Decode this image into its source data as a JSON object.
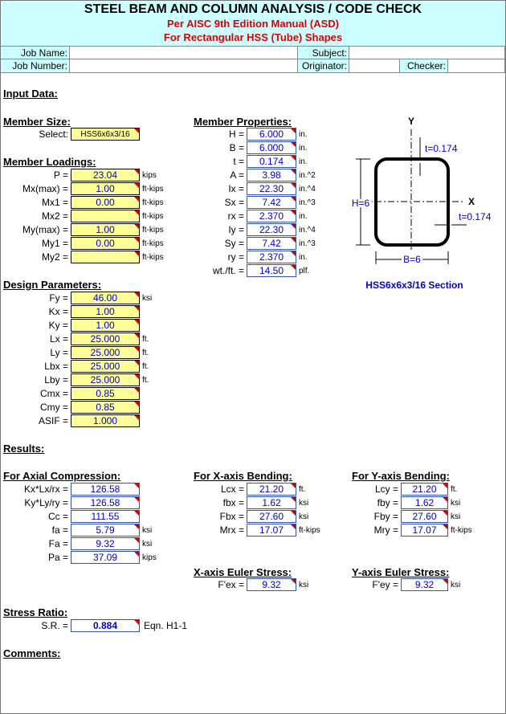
{
  "header": {
    "title": "STEEL BEAM AND COLUMN ANALYSIS / CODE CHECK",
    "subtitle": "Per AISC 9th Edition Manual (ASD)",
    "subtitle2": "For Rectangular HSS (Tube) Shapes"
  },
  "job": {
    "job_name": "Job Name:",
    "subject": "Subject:",
    "job_number": "Job Number:",
    "originator": "Originator:",
    "checker": "Checker:"
  },
  "input_heading": "Input Data:",
  "member_size": {
    "heading": "Member Size:",
    "label": "Select:",
    "value": "HSS6x6x3/16"
  },
  "member_loadings": {
    "heading": "Member Loadings:",
    "rows": [
      {
        "label": "P =",
        "value": "23.04",
        "unit": "kips"
      },
      {
        "label": "Mx(max) =",
        "value": "1.00",
        "unit": "ft-kips"
      },
      {
        "label": "Mx1 =",
        "value": "0.00",
        "unit": "ft-kips"
      },
      {
        "label": "Mx2 =",
        "unit": "ft-kips"
      },
      {
        "label": "My(max) =",
        "value": "1.00",
        "unit": "ft-kips"
      },
      {
        "label": "My1 =",
        "value": "0.00",
        "unit": "ft-kips"
      },
      {
        "label": "My2 =",
        "unit": "ft-kips"
      }
    ]
  },
  "member_properties": {
    "heading": "Member Properties:",
    "rows": [
      {
        "label": "H =",
        "value": "6.000",
        "unit": "in."
      },
      {
        "label": "B =",
        "value": "6.000",
        "unit": "in."
      },
      {
        "label": "t =",
        "value": "0.174",
        "unit": "in."
      },
      {
        "label": "A =",
        "value": "3.98",
        "unit": "in.^2"
      },
      {
        "label": "Ix =",
        "value": "22.30",
        "unit": "in.^4"
      },
      {
        "label": "Sx =",
        "value": "7.42",
        "unit": "in.^3"
      },
      {
        "label": "rx =",
        "value": "2.370",
        "unit": "in."
      },
      {
        "label": "Iy =",
        "value": "22.30",
        "unit": "in.^4"
      },
      {
        "label": "Sy =",
        "value": "7.42",
        "unit": "in.^3"
      },
      {
        "label": "ry =",
        "value": "2.370",
        "unit": "in."
      },
      {
        "label": "wt./ft. =",
        "value": "14.50",
        "unit": "plf."
      }
    ]
  },
  "diagram": {
    "y_axis": "Y",
    "x_axis": "X",
    "height": "H=6",
    "width": "B=6",
    "t_top": "t=0.174",
    "t_side": "t=0.174",
    "caption": "HSS6x6x3/16 Section"
  },
  "design_parameters": {
    "heading": "Design Parameters:",
    "rows": [
      {
        "label": "Fy =",
        "value": "46.00",
        "unit": "ksi"
      },
      {
        "label": "Kx =",
        "value": "1.00"
      },
      {
        "label": "Ky =",
        "value": "1.00"
      },
      {
        "label": "Lx =",
        "value": "25.000",
        "unit": "ft."
      },
      {
        "label": "Ly =",
        "value": "25.000",
        "unit": "ft."
      },
      {
        "label": "Lbx =",
        "value": "25.000",
        "unit": "ft."
      },
      {
        "label": "Lby =",
        "value": "25.000",
        "unit": "ft."
      },
      {
        "label": "Cmx =",
        "value": "0.85"
      },
      {
        "label": "Cmy =",
        "value": "0.85"
      },
      {
        "label": "ASIF =",
        "value": "1.000"
      }
    ]
  },
  "results_heading": "Results:",
  "axial_compression": {
    "heading": "For Axial Compression:",
    "rows": [
      {
        "label": "Kx*Lx/rx =",
        "value": "126.58"
      },
      {
        "label": "Ky*Ly/ry =",
        "value": "126.58"
      },
      {
        "label": "Cc =",
        "value": "111.55"
      },
      {
        "label": "fa =",
        "value": "5.79",
        "unit": "ksi"
      },
      {
        "label": "Fa =",
        "value": "9.32",
        "unit": "ksi"
      },
      {
        "label": "Pa =",
        "value": "37.09",
        "unit": "kips"
      }
    ]
  },
  "x_bending": {
    "heading": "For X-axis Bending:",
    "rows": [
      {
        "label": "Lcx =",
        "value": "21.20",
        "unit": "ft."
      },
      {
        "label": "fbx =",
        "value": "1.62",
        "unit": "ksi"
      },
      {
        "label": "Fbx =",
        "value": "27.60",
        "unit": "ksi"
      },
      {
        "label": "Mrx =",
        "value": "17.07",
        "unit": "ft-kips"
      }
    ]
  },
  "y_bending": {
    "heading": "For Y-axis Bending:",
    "rows": [
      {
        "label": "Lcy =",
        "value": "21.20",
        "unit": "ft."
      },
      {
        "label": "fby =",
        "value": "1.62",
        "unit": "ksi"
      },
      {
        "label": "Fby =",
        "value": "27.60",
        "unit": "ksi"
      },
      {
        "label": "Mry =",
        "value": "17.07",
        "unit": "ft-kips"
      }
    ]
  },
  "x_euler": {
    "heading": "X-axis Euler Stress:",
    "rows": [
      {
        "label": "F'ex =",
        "value": "9.32",
        "unit": "ksi"
      }
    ]
  },
  "y_euler": {
    "heading": "Y-axis Euler Stress:",
    "rows": [
      {
        "label": "F'ey =",
        "value": "9.32",
        "unit": "ksi"
      }
    ]
  },
  "stress_ratio": {
    "heading": "Stress Ratio:",
    "rows": [
      {
        "label": "S.R. =",
        "value": "0.884",
        "note": "Eqn. H1-1"
      }
    ]
  },
  "comments_heading": "Comments:"
}
